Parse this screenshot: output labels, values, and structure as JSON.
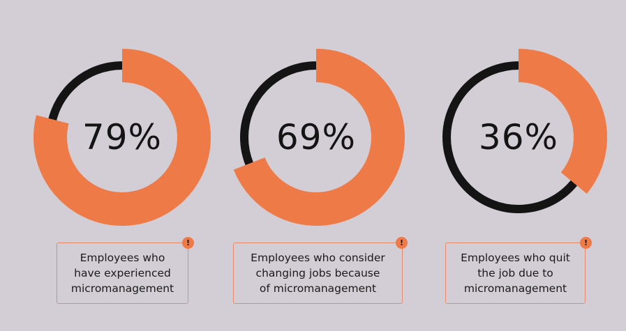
{
  "colors": {
    "background": "#d3ced5",
    "accent": "#ee7a48",
    "track": "#141414",
    "box_border": "#e8896a"
  },
  "badge_icon": "exclamation-icon",
  "badge_symbol": "!",
  "chart_data": [
    {
      "type": "pie",
      "variant": "donut",
      "value": 79,
      "max": 100,
      "center_label": "79%",
      "caption": "Employees who\nhave experienced\nmicromanagement"
    },
    {
      "type": "pie",
      "variant": "donut",
      "value": 69,
      "max": 100,
      "center_label": "69%",
      "caption": "Employees who consider\nchanging jobs because\nof micromanagement"
    },
    {
      "type": "pie",
      "variant": "donut",
      "value": 36,
      "max": 100,
      "center_label": "36%",
      "caption": "Employees who quit\nthe job due to\nmicromanagement"
    }
  ]
}
